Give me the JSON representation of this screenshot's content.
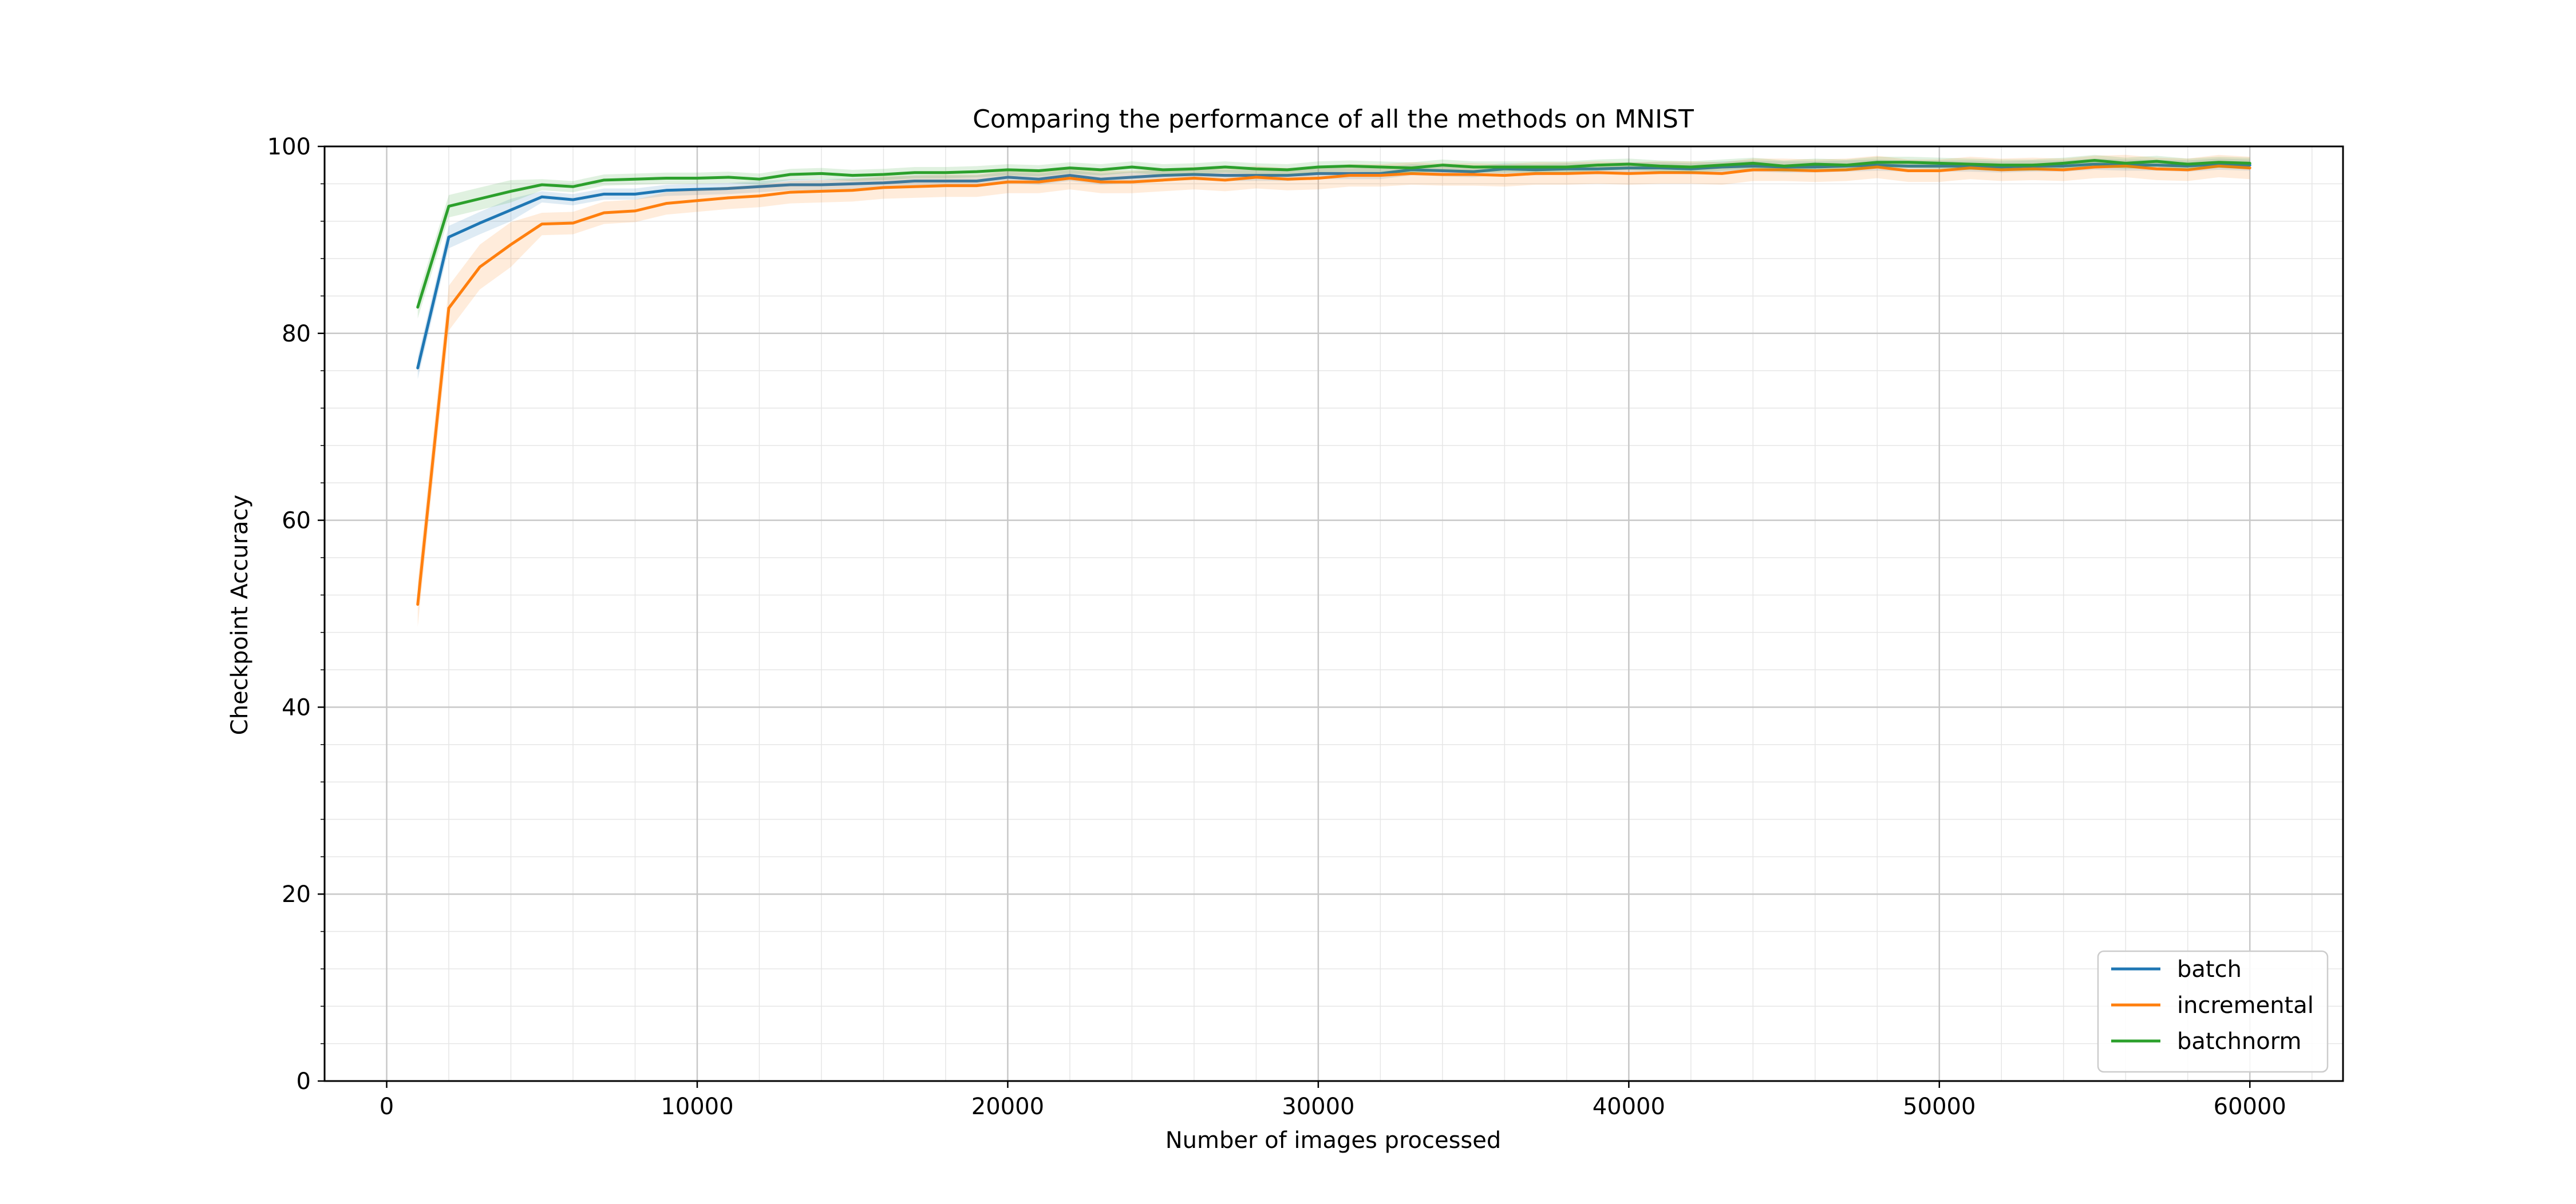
{
  "chart_data": {
    "type": "line",
    "title": "Comparing the performance of all the methods on MNIST",
    "xlabel": "Number of images processed",
    "ylabel": "Checkpoint Accuracy",
    "xlim": [
      -2000,
      63000
    ],
    "ylim": [
      0,
      100
    ],
    "x_ticks": [
      0,
      10000,
      20000,
      30000,
      40000,
      50000,
      60000
    ],
    "y_ticks": [
      0,
      20,
      40,
      60,
      80,
      100
    ],
    "grid": true,
    "minor_grid": true,
    "legend_position": "lower-right",
    "x": [
      1000,
      2000,
      3000,
      4000,
      5000,
      6000,
      7000,
      8000,
      9000,
      10000,
      11000,
      12000,
      13000,
      14000,
      15000,
      16000,
      17000,
      18000,
      19000,
      20000,
      21000,
      22000,
      23000,
      24000,
      25000,
      26000,
      27000,
      28000,
      29000,
      30000,
      31000,
      32000,
      33000,
      34000,
      35000,
      36000,
      37000,
      38000,
      39000,
      40000,
      41000,
      42000,
      43000,
      44000,
      45000,
      46000,
      47000,
      48000,
      49000,
      50000,
      51000,
      52000,
      53000,
      54000,
      55000,
      56000,
      57000,
      58000,
      59000,
      60000
    ],
    "series": [
      {
        "name": "batch",
        "color": "#1f77b4",
        "values": [
          76.3,
          90.3,
          91.8,
          93.2,
          94.6,
          94.3,
          94.9,
          94.9,
          95.3,
          95.4,
          95.5,
          95.7,
          95.9,
          95.9,
          96.0,
          96.1,
          96.3,
          96.3,
          96.3,
          96.7,
          96.5,
          96.9,
          96.5,
          96.7,
          96.9,
          97.0,
          96.9,
          96.9,
          96.9,
          97.1,
          97.1,
          97.1,
          97.5,
          97.4,
          97.3,
          97.6,
          97.5,
          97.6,
          97.6,
          97.7,
          97.7,
          97.6,
          97.8,
          97.9,
          97.8,
          97.8,
          97.9,
          98.0,
          97.9,
          97.9,
          97.9,
          97.8,
          97.9,
          97.9,
          98.1,
          98.0,
          98.0,
          97.9,
          98.1,
          98.0
        ]
      },
      {
        "name": "incremental",
        "color": "#ff7f0e",
        "values": [
          51.0,
          82.7,
          87.1,
          89.5,
          91.7,
          91.8,
          92.9,
          93.1,
          93.9,
          94.2,
          94.5,
          94.7,
          95.1,
          95.2,
          95.3,
          95.6,
          95.7,
          95.8,
          95.8,
          96.2,
          96.2,
          96.6,
          96.2,
          96.2,
          96.4,
          96.6,
          96.4,
          96.7,
          96.5,
          96.6,
          96.9,
          96.9,
          97.1,
          97.0,
          97.0,
          96.9,
          97.1,
          97.1,
          97.2,
          97.1,
          97.2,
          97.2,
          97.1,
          97.5,
          97.5,
          97.4,
          97.5,
          97.8,
          97.4,
          97.4,
          97.7,
          97.5,
          97.6,
          97.5,
          97.8,
          97.9,
          97.6,
          97.5,
          97.9,
          97.7
        ]
      },
      {
        "name": "batchnorm",
        "color": "#2ca02c",
        "values": [
          82.8,
          93.6,
          94.4,
          95.2,
          95.9,
          95.7,
          96.4,
          96.5,
          96.6,
          96.6,
          96.7,
          96.5,
          97.0,
          97.1,
          96.9,
          97.0,
          97.2,
          97.2,
          97.3,
          97.5,
          97.4,
          97.7,
          97.5,
          97.8,
          97.5,
          97.6,
          97.8,
          97.6,
          97.5,
          97.8,
          97.9,
          97.8,
          97.7,
          98.0,
          97.8,
          97.8,
          97.8,
          97.8,
          98.0,
          98.1,
          97.9,
          97.8,
          98.0,
          98.2,
          97.9,
          98.1,
          98.0,
          98.3,
          98.3,
          98.2,
          98.1,
          98.0,
          98.0,
          98.2,
          98.5,
          98.2,
          98.4,
          98.1,
          98.3,
          98.2
        ]
      }
    ]
  }
}
